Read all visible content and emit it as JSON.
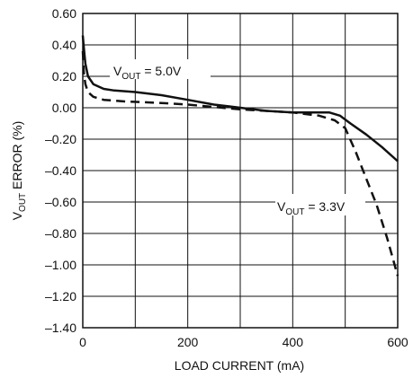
{
  "chart_data": {
    "type": "line",
    "xlabel": "LOAD CURRENT (mA)",
    "ylabel": {
      "base": "V",
      "sub": "OUT",
      "rest": " ERROR (%)"
    },
    "xlim": [
      0,
      600
    ],
    "ylim": [
      -1.4,
      0.6
    ],
    "xticks": [
      0,
      200,
      400,
      600
    ],
    "xtick_labels": [
      "0",
      "200",
      "400",
      "600"
    ],
    "yticks": [
      0.6,
      0.4,
      0.2,
      0.0,
      -0.2,
      -0.4,
      -0.6,
      -0.8,
      -1.0,
      -1.2,
      -1.4
    ],
    "ytick_labels": [
      "0.60",
      "0.40",
      "0.20",
      "0.00",
      "–0.20",
      "–0.40",
      "–0.60",
      "–0.80",
      "–1.00",
      "–1.20",
      "–1.40"
    ],
    "grid": true,
    "series": [
      {
        "name": {
          "base": "V",
          "sub": "OUT",
          "rest": " = 5.0V"
        },
        "style": "solid",
        "points": [
          [
            0,
            0.46
          ],
          [
            2,
            0.38
          ],
          [
            5,
            0.28
          ],
          [
            10,
            0.2
          ],
          [
            20,
            0.15
          ],
          [
            40,
            0.12
          ],
          [
            60,
            0.11
          ],
          [
            100,
            0.1
          ],
          [
            150,
            0.08
          ],
          [
            200,
            0.05
          ],
          [
            250,
            0.02
          ],
          [
            300,
            0.0
          ],
          [
            350,
            -0.02
          ],
          [
            400,
            -0.03
          ],
          [
            450,
            -0.03
          ],
          [
            470,
            -0.03
          ],
          [
            490,
            -0.05
          ],
          [
            510,
            -0.1
          ],
          [
            540,
            -0.17
          ],
          [
            570,
            -0.25
          ],
          [
            600,
            -0.34
          ]
        ]
      },
      {
        "name": {
          "base": "V",
          "sub": "OUT",
          "rest": " = 3.3V"
        },
        "style": "dashed",
        "points": [
          [
            0,
            0.36
          ],
          [
            2,
            0.22
          ],
          [
            5,
            0.15
          ],
          [
            10,
            0.1
          ],
          [
            20,
            0.07
          ],
          [
            40,
            0.05
          ],
          [
            80,
            0.04
          ],
          [
            150,
            0.03
          ],
          [
            200,
            0.02
          ],
          [
            300,
            -0.01
          ],
          [
            350,
            -0.02
          ],
          [
            400,
            -0.03
          ],
          [
            450,
            -0.05
          ],
          [
            480,
            -0.08
          ],
          [
            500,
            -0.13
          ],
          [
            520,
            -0.28
          ],
          [
            540,
            -0.45
          ],
          [
            560,
            -0.62
          ],
          [
            580,
            -0.83
          ],
          [
            600,
            -1.07
          ]
        ]
      }
    ]
  }
}
